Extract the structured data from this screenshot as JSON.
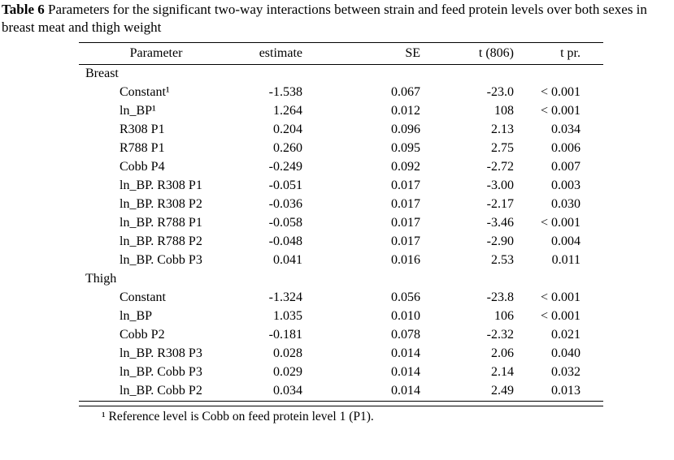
{
  "caption": {
    "label": "Table 6",
    "text": "Parameters for the significant two-way interactions between strain and feed protein levels over both sexes in breast meat and thigh weight"
  },
  "table": {
    "columns": [
      "Parameter",
      "estimate",
      "SE",
      "t (806)",
      "t pr."
    ],
    "sections": [
      {
        "name": "Breast",
        "rows": [
          [
            "Constant¹",
            "-1.538",
            "0.067",
            "-23.0",
            "< 0.001"
          ],
          [
            "ln_BP¹",
            "1.264",
            "0.012",
            "108",
            "< 0.001"
          ],
          [
            "R308 P1",
            "0.204",
            "0.096",
            "2.13",
            "0.034"
          ],
          [
            "R788 P1",
            "0.260",
            "0.095",
            "2.75",
            "0.006"
          ],
          [
            "Cobb P4",
            "-0.249",
            "0.092",
            "-2.72",
            "0.007"
          ],
          [
            "ln_BP. R308 P1",
            "-0.051",
            "0.017",
            "-3.00",
            "0.003"
          ],
          [
            "ln_BP. R308 P2",
            "-0.036",
            "0.017",
            "-2.17",
            "0.030"
          ],
          [
            "ln_BP. R788 P1",
            "-0.058",
            "0.017",
            "-3.46",
            "< 0.001"
          ],
          [
            "ln_BP. R788 P2",
            "-0.048",
            "0.017",
            "-2.90",
            "0.004"
          ],
          [
            "ln_BP. Cobb P3",
            "0.041",
            "0.016",
            "2.53",
            "0.011"
          ]
        ]
      },
      {
        "name": "Thigh",
        "rows": [
          [
            "Constant",
            "-1.324",
            "0.056",
            "-23.8",
            "< 0.001"
          ],
          [
            "ln_BP",
            "1.035",
            "0.010",
            "106",
            "< 0.001"
          ],
          [
            "Cobb P2",
            "-0.181",
            "0.078",
            "-2.32",
            "0.021"
          ],
          [
            "ln_BP. R308 P3",
            "0.028",
            "0.014",
            "2.06",
            "0.040"
          ],
          [
            "ln_BP. Cobb P3",
            "0.029",
            "0.014",
            "2.14",
            "0.032"
          ],
          [
            "ln_BP. Cobb P2",
            "0.034",
            "0.014",
            "2.49",
            "0.013"
          ]
        ]
      }
    ]
  },
  "footnote": "¹ Reference level is Cobb on feed protein level 1 (P1)."
}
